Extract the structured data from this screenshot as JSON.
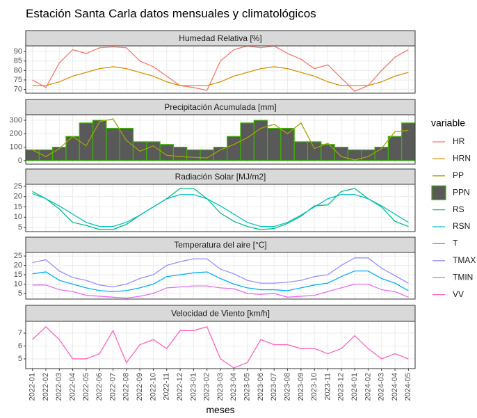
{
  "title": "Estación Santa Carla datos mensuales y climatológicos",
  "x_label": "meses",
  "legend_title": "variable",
  "chart_data": [
    {
      "type": "line",
      "title": "Humedad Relativa [%]",
      "ylim": [
        68,
        93
      ],
      "yticks": [
        70,
        75,
        80,
        85,
        90
      ],
      "grid": true,
      "series": [
        {
          "name": "HR",
          "color": "#F8766D",
          "values": [
            75,
            71,
            84,
            91,
            89,
            92,
            92.5,
            92,
            85,
            82,
            77,
            72,
            71,
            69.5,
            85,
            91,
            93,
            92,
            93,
            89,
            86,
            81,
            83,
            76,
            69,
            72,
            80,
            87,
            91
          ]
        },
        {
          "name": "HRN",
          "color": "#D89000",
          "values": [
            72,
            72,
            74,
            77,
            79,
            81,
            82,
            81,
            79,
            77,
            74,
            72,
            72,
            72,
            74,
            77,
            79,
            81,
            82,
            81,
            79,
            77,
            74,
            72,
            72,
            72,
            74,
            77,
            79
          ]
        }
      ]
    },
    {
      "type": "bar",
      "title": "Precipitación Acumulada [mm]",
      "ylim": [
        -26,
        341
      ],
      "yticks": [
        0,
        100,
        200,
        300
      ],
      "grid": true,
      "series": [
        {
          "name": "PP",
          "type": "line",
          "color": "#A3A500",
          "values": [
            80,
            30,
            90,
            180,
            110,
            290,
            310,
            150,
            70,
            110,
            40,
            30,
            25,
            20,
            80,
            120,
            170,
            240,
            270,
            200,
            280,
            90,
            130,
            30,
            5,
            30,
            90,
            215,
            225
          ]
        },
        {
          "name": "PPN",
          "type": "bar",
          "color": "#39B600",
          "fill": "#595959",
          "values": [
            80,
            80,
            100,
            180,
            280,
            300,
            240,
            240,
            140,
            140,
            120,
            100,
            80,
            80,
            100,
            180,
            280,
            300,
            240,
            240,
            140,
            140,
            120,
            100,
            80,
            80,
            100,
            180,
            280
          ]
        }
      ]
    },
    {
      "type": "line",
      "title": "Radiación Solar [MJ/m2]",
      "ylim": [
        3,
        26
      ],
      "yticks": [
        5,
        10,
        15,
        20,
        25
      ],
      "grid": true,
      "series": [
        {
          "name": "RS",
          "color": "#00BF7D",
          "values": [
            22.5,
            19,
            14,
            7.5,
            6,
            4,
            4,
            6.5,
            11,
            15,
            19,
            24,
            24,
            19,
            12,
            8,
            5.5,
            4,
            4.5,
            7,
            10.5,
            15.5,
            16,
            22.5,
            24,
            19,
            15,
            8,
            5.5
          ]
        },
        {
          "name": "RSN",
          "color": "#00BFC4",
          "values": [
            21.5,
            19,
            15.5,
            11.5,
            7.5,
            5.5,
            5.5,
            7.5,
            11,
            15,
            19,
            21,
            21,
            19,
            15.5,
            11.5,
            7.5,
            5.5,
            5.5,
            7.5,
            11,
            15,
            19,
            21,
            21,
            19,
            15.5,
            11.5,
            7.5
          ]
        }
      ]
    },
    {
      "type": "line",
      "title": "Temperatura del aire [°C]",
      "ylim": [
        2,
        26.9
      ],
      "yticks": [
        5,
        10,
        15,
        20,
        25
      ],
      "grid": true,
      "series": [
        {
          "name": "T",
          "color": "#00B0F6",
          "values": [
            15.5,
            16.5,
            12,
            10,
            8,
            6.5,
            6,
            6.5,
            8,
            10,
            14,
            15,
            16,
            16.5,
            13,
            10,
            8,
            7,
            7,
            6.5,
            8,
            9.5,
            10.5,
            14,
            17,
            17,
            13,
            10.5,
            6.5
          ]
        },
        {
          "name": "TMAX",
          "color": "#9590FF",
          "values": [
            21.5,
            23,
            17,
            13.5,
            12,
            9.5,
            8.5,
            10,
            13,
            15,
            20,
            22,
            23.5,
            23.5,
            18,
            15.5,
            12,
            10.5,
            10.5,
            11,
            12,
            14,
            15,
            20,
            24,
            24,
            18.5,
            14.5,
            10.5
          ]
        },
        {
          "name": "TMIN",
          "color": "#E76BF3",
          "values": [
            9.5,
            9.5,
            7,
            6,
            4,
            3.5,
            3,
            2.5,
            3.5,
            5,
            8,
            8.5,
            9,
            9,
            8,
            7.5,
            5,
            4.5,
            5,
            3,
            3.5,
            4,
            6,
            8,
            10,
            10,
            7,
            6,
            3
          ]
        }
      ]
    },
    {
      "type": "line",
      "title": "Velocidad de Viento [km/h]",
      "ylim": [
        4.24,
        7.92
      ],
      "yticks": [
        5,
        6,
        7
      ],
      "grid": true,
      "categories": [
        "2022-01",
        "2022-02",
        "2022-03",
        "2022-04",
        "2022-05",
        "2022-06",
        "2022-07",
        "2022-08",
        "2022-09",
        "2022-10",
        "2022-11",
        "2022-12",
        "2023-01",
        "2023-02",
        "2023-03",
        "2023-04",
        "2023-05",
        "2023-06",
        "2023-07",
        "2023-08",
        "2023-09",
        "2023-10",
        "2023-11",
        "2023-12",
        "2024-01",
        "2024-02",
        "2024-03",
        "2024-04",
        "2024-05"
      ],
      "series": [
        {
          "name": "VV",
          "color": "#FF62BC",
          "values": [
            6.5,
            7.5,
            6.5,
            5,
            5,
            5.4,
            7.2,
            4.7,
            6.1,
            6.5,
            5.8,
            7.2,
            7.2,
            7.5,
            5,
            4.3,
            4.7,
            6.5,
            6.1,
            6.1,
            5.8,
            5.8,
            5.4,
            5.8,
            6.8,
            5.8,
            5,
            5.4,
            5
          ]
        }
      ]
    }
  ]
}
